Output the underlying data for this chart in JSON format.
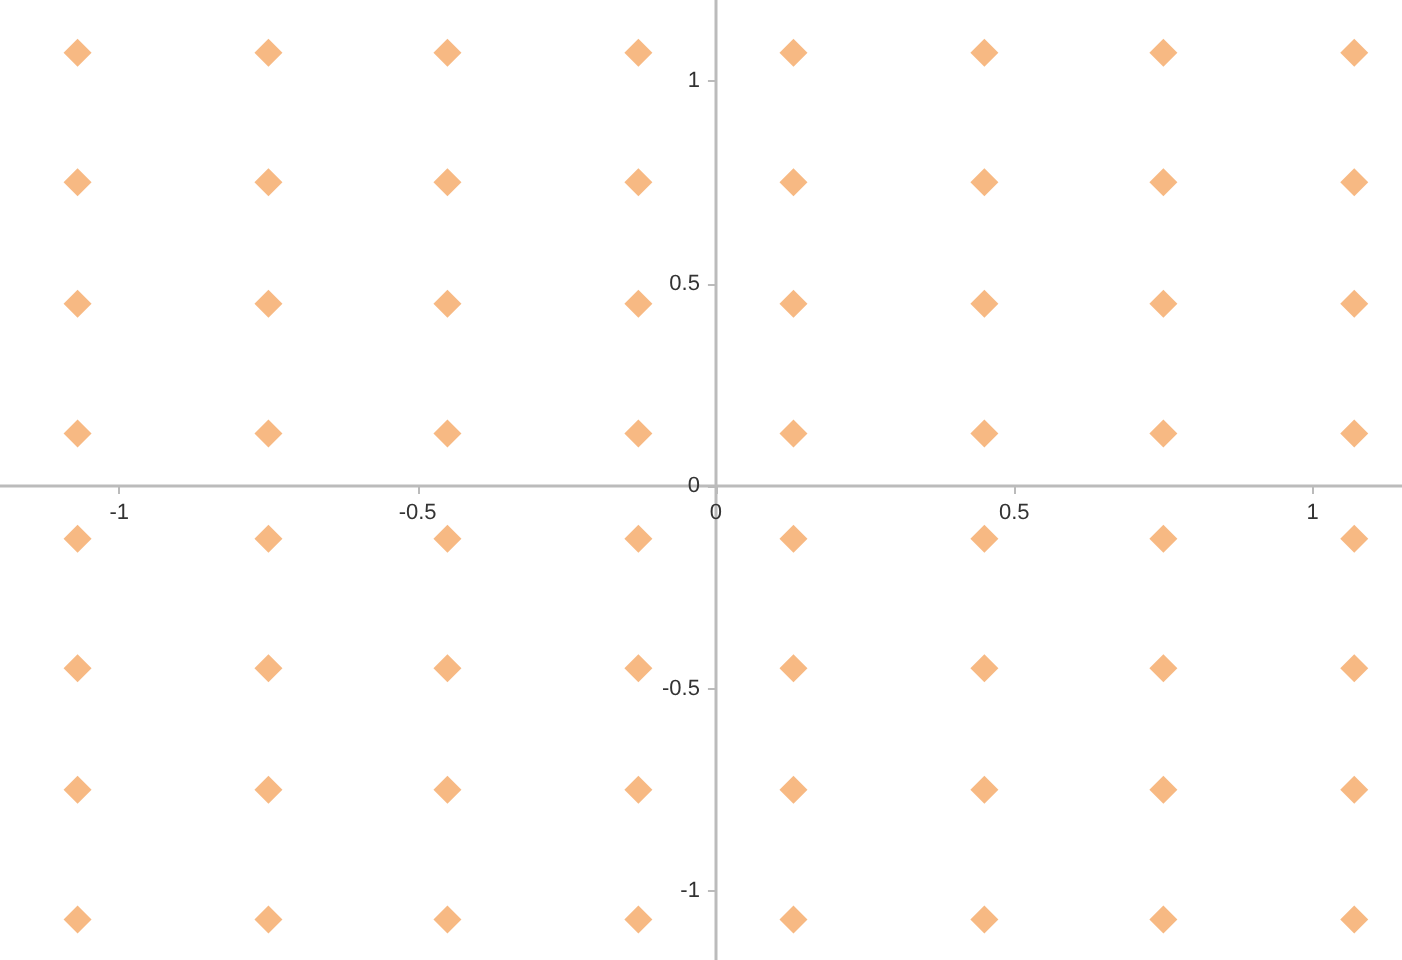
{
  "chart_data": {
    "type": "scatter",
    "marker": "diamond",
    "grid": false,
    "xlim": [
      -1.2,
      1.15
    ],
    "ylim": [
      -1.17,
      1.2
    ],
    "xticks": [
      -1,
      -0.5,
      0,
      0.5,
      1
    ],
    "yticks": [
      -1,
      -0.5,
      0,
      0.5,
      1
    ],
    "series": [
      {
        "color": "#f5a864",
        "x": [
          -1.07,
          -0.75,
          -0.45,
          -0.13,
          0.13,
          0.45,
          0.75,
          1.07,
          -1.07,
          -0.75,
          -0.45,
          -0.13,
          0.13,
          0.45,
          0.75,
          1.07,
          -1.07,
          -0.75,
          -0.45,
          -0.13,
          0.13,
          0.45,
          0.75,
          1.07,
          -1.07,
          -0.75,
          -0.45,
          -0.13,
          0.13,
          0.45,
          0.75,
          1.07,
          -1.07,
          -0.75,
          -0.45,
          -0.13,
          0.13,
          0.45,
          0.75,
          1.07,
          -1.07,
          -0.75,
          -0.45,
          -0.13,
          0.13,
          0.45,
          0.75,
          1.07,
          -1.07,
          -0.75,
          -0.45,
          -0.13,
          0.13,
          0.45,
          0.75,
          1.07,
          -1.07,
          -0.75,
          -0.45,
          -0.13,
          0.13,
          0.45,
          0.75,
          1.07
        ],
        "values": [
          1.07,
          1.07,
          1.07,
          1.07,
          1.07,
          1.07,
          1.07,
          1.07,
          0.75,
          0.75,
          0.75,
          0.75,
          0.75,
          0.75,
          0.75,
          0.75,
          0.45,
          0.45,
          0.45,
          0.45,
          0.45,
          0.45,
          0.45,
          0.45,
          0.13,
          0.13,
          0.13,
          0.13,
          0.13,
          0.13,
          0.13,
          0.13,
          -0.13,
          -0.13,
          -0.13,
          -0.13,
          -0.13,
          -0.13,
          -0.13,
          -0.13,
          -0.45,
          -0.45,
          -0.45,
          -0.45,
          -0.45,
          -0.45,
          -0.45,
          -0.45,
          -0.75,
          -0.75,
          -0.75,
          -0.75,
          -0.75,
          -0.75,
          -0.75,
          -0.75,
          -1.07,
          -1.07,
          -1.07,
          -1.07,
          -1.07,
          -1.07,
          -1.07,
          -1.07
        ]
      }
    ]
  }
}
